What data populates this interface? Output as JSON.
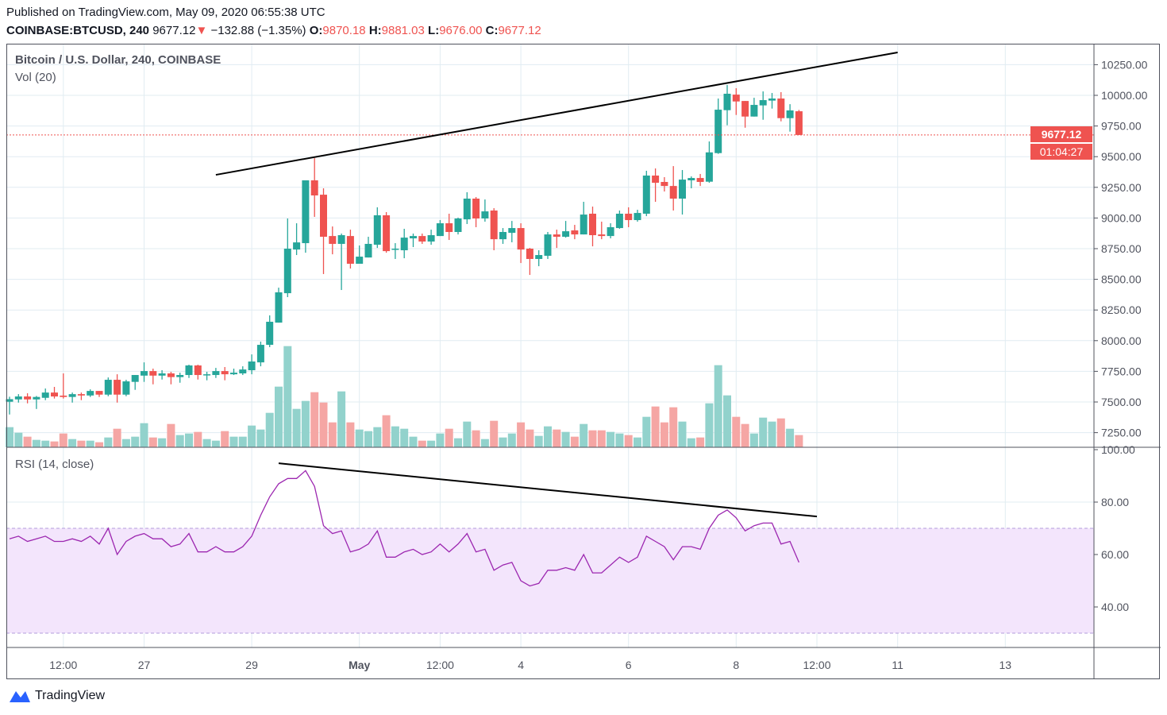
{
  "header": {
    "published": "Published on TradingView.com, May 09, 2020 06:55:38 UTC",
    "symbol": "COINBASE:BTCUSD, 240",
    "last": "9677.12",
    "change": "−132.88 (−1.35%)",
    "o_label": "O:",
    "o": "9870.18",
    "h_label": "H:",
    "h": "9881.03",
    "l_label": "L:",
    "l": "9676.00",
    "c_label": "C:",
    "c": "9677.12"
  },
  "legend": {
    "title": "Bitcoin / U.S. Dollar, 240, COINBASE",
    "volume": "Vol (20)",
    "rsi": "RSI (14, close)"
  },
  "price_tag": "9677.12",
  "countdown": "01:04:27",
  "brand": "TradingView",
  "colors": {
    "up": "#26a69a",
    "down": "#ef5350",
    "vol_up": "#92d2cc",
    "vol_down": "#f5a6a4",
    "rsi": "#9c27b0",
    "rsi_band": "#f3e5fc",
    "grid": "#e1ecf2"
  },
  "chart_data": [
    {
      "type": "candlestick",
      "title": "Bitcoin / U.S. Dollar, 240, COINBASE",
      "y_ticks": [
        "10250.00",
        "10000.00",
        "9750.00",
        "9500.00",
        "9250.00",
        "9000.00",
        "8750.00",
        "8500.00",
        "8250.00",
        "8000.00",
        "7750.00",
        "7500.00",
        "7250.00"
      ],
      "ylim": [
        7150,
        10350
      ],
      "x_ticks": [
        {
          "label": "12:00",
          "index": 6
        },
        {
          "label": "27",
          "index": 15
        },
        {
          "label": "29",
          "index": 27
        },
        {
          "label": "May",
          "index": 39
        },
        {
          "label": "12:00",
          "index": 48
        },
        {
          "label": "4",
          "index": 57
        },
        {
          "label": "6",
          "index": 69
        },
        {
          "label": "8",
          "index": 81
        },
        {
          "label": "12:00",
          "index": 90
        },
        {
          "label": "11",
          "index": 99
        },
        {
          "label": "13",
          "index": 111
        }
      ],
      "x_range": [
        -0.4,
        121
      ],
      "ohlc": [
        [
          7502,
          7543,
          7398,
          7523
        ],
        [
          7521,
          7564,
          7495,
          7545
        ],
        [
          7545,
          7571,
          7489,
          7521
        ],
        [
          7521,
          7549,
          7443,
          7541
        ],
        [
          7534,
          7610,
          7515,
          7577
        ],
        [
          7577,
          7623,
          7528,
          7545
        ],
        [
          7552,
          7733,
          7528,
          7541
        ],
        [
          7541,
          7577,
          7495,
          7564
        ],
        [
          7564,
          7577,
          7515,
          7553
        ],
        [
          7553,
          7603,
          7541,
          7590
        ],
        [
          7590,
          7590,
          7541,
          7560
        ],
        [
          7560,
          7700,
          7547,
          7681
        ],
        [
          7681,
          7726,
          7495,
          7560
        ],
        [
          7560,
          7681,
          7547,
          7668
        ],
        [
          7664,
          7720,
          7599,
          7720
        ],
        [
          7715,
          7823,
          7664,
          7752
        ],
        [
          7752,
          7772,
          7644,
          7715
        ],
        [
          7715,
          7759,
          7683,
          7733
        ],
        [
          7733,
          7746,
          7644,
          7703
        ],
        [
          7703,
          7739,
          7657,
          7720
        ],
        [
          7720,
          7804,
          7696,
          7798
        ],
        [
          7798,
          7804,
          7683,
          7720
        ],
        [
          7720,
          7746,
          7677,
          7726
        ],
        [
          7720,
          7778,
          7696,
          7752
        ],
        [
          7752,
          7785,
          7677,
          7726
        ],
        [
          7726,
          7772,
          7720,
          7739
        ],
        [
          7733,
          7791,
          7720,
          7765
        ],
        [
          7759,
          7888,
          7726,
          7830
        ],
        [
          7823,
          7992,
          7791,
          7966
        ],
        [
          7966,
          8206,
          7947,
          8154
        ],
        [
          8147,
          8432,
          8147,
          8394
        ],
        [
          8387,
          8996,
          8355,
          8750
        ],
        [
          8743,
          8957,
          8698,
          8801
        ],
        [
          8795,
          9307,
          8717,
          9307
        ],
        [
          9307,
          9488,
          9009,
          9184
        ],
        [
          9190,
          9242,
          8543,
          8847
        ],
        [
          8853,
          8931,
          8704,
          8789
        ],
        [
          8789,
          8873,
          8413,
          8860
        ],
        [
          8853,
          8905,
          8588,
          8627
        ],
        [
          8627,
          8776,
          8627,
          8685
        ],
        [
          8678,
          8847,
          8678,
          8789
        ],
        [
          8782,
          9087,
          8756,
          9022
        ],
        [
          9022,
          9048,
          8717,
          8730
        ],
        [
          8743,
          8795,
          8666,
          8750
        ],
        [
          8737,
          8912,
          8672,
          8840
        ],
        [
          8834,
          8873,
          8763,
          8853
        ],
        [
          8853,
          8873,
          8789,
          8808
        ],
        [
          8808,
          8905,
          8782,
          8860
        ],
        [
          8853,
          8983,
          8853,
          8957
        ],
        [
          8957,
          9035,
          8821,
          8886
        ],
        [
          8886,
          9003,
          8866,
          8996
        ],
        [
          8989,
          9210,
          8951,
          9158
        ],
        [
          9158,
          9171,
          8925,
          8996
        ],
        [
          8996,
          9151,
          8970,
          9054
        ],
        [
          9061,
          9080,
          8737,
          8827
        ],
        [
          8827,
          8918,
          8789,
          8886
        ],
        [
          8879,
          8976,
          8802,
          8918
        ],
        [
          8918,
          8957,
          8633,
          8743
        ],
        [
          8750,
          8756,
          8536,
          8666
        ],
        [
          8666,
          8737,
          8607,
          8698
        ],
        [
          8692,
          8886,
          8666,
          8866
        ],
        [
          8866,
          8905,
          8756,
          8847
        ],
        [
          8847,
          8976,
          8840,
          8892
        ],
        [
          8899,
          8944,
          8827,
          8866
        ],
        [
          8866,
          9132,
          8866,
          9028
        ],
        [
          9035,
          9093,
          8769,
          8860
        ],
        [
          8866,
          8970,
          8827,
          8853
        ],
        [
          8853,
          8957,
          8834,
          8925
        ],
        [
          8918,
          9061,
          8912,
          9035
        ],
        [
          9035,
          9087,
          8925,
          8983
        ],
        [
          8983,
          9067,
          8970,
          9041
        ],
        [
          9035,
          9385,
          9015,
          9346
        ],
        [
          9346,
          9404,
          9132,
          9287
        ],
        [
          9294,
          9333,
          9216,
          9261
        ],
        [
          9261,
          9423,
          9061,
          9158
        ],
        [
          9158,
          9391,
          9028,
          9313
        ],
        [
          9307,
          9339,
          9242,
          9326
        ],
        [
          9326,
          9359,
          9261,
          9294
        ],
        [
          9296,
          9624,
          9287,
          9535
        ],
        [
          9529,
          9974,
          9523,
          9883
        ],
        [
          9879,
          10084,
          9756,
          10013
        ],
        [
          10006,
          10058,
          9840,
          9950
        ],
        [
          9954,
          9954,
          9736,
          9827
        ],
        [
          9827,
          9980,
          9827,
          9922
        ],
        [
          9918,
          10032,
          9801,
          9961
        ],
        [
          9957,
          10019,
          9892,
          9974
        ],
        [
          9974,
          10026,
          9788,
          9814
        ],
        [
          9814,
          9928,
          9704,
          9877
        ],
        [
          9870.18,
          9881.03,
          9676.0,
          9677.12
        ]
      ],
      "volume_relative": [
        76,
        55,
        40,
        28,
        25,
        22,
        52,
        31,
        25,
        25,
        19,
        37,
        70,
        31,
        40,
        91,
        37,
        34,
        88,
        46,
        52,
        58,
        31,
        25,
        61,
        40,
        40,
        82,
        67,
        130,
        229,
        382,
        145,
        175,
        208,
        169,
        94,
        211,
        94,
        67,
        61,
        76,
        121,
        79,
        70,
        40,
        25,
        25,
        52,
        70,
        34,
        97,
        64,
        31,
        100,
        37,
        52,
        94,
        67,
        43,
        79,
        67,
        58,
        40,
        88,
        64,
        64,
        58,
        52,
        46,
        37,
        115,
        154,
        94,
        151,
        97,
        34,
        37,
        166,
        310,
        196,
        115,
        88,
        52,
        112,
        97,
        109,
        70,
        46
      ],
      "trendline": {
        "from": {
          "index": 23,
          "price": 9352
        },
        "to": {
          "index": 99,
          "price": 10350
        }
      },
      "last_price": 9677.12
    },
    {
      "type": "line",
      "title": "RSI (14, close)",
      "y_ticks": [
        "100.00",
        "80.00",
        "60.00",
        "40.00"
      ],
      "ylim": [
        20.5,
        100
      ],
      "band": [
        30,
        70
      ],
      "values": [
        66,
        67,
        65,
        66,
        67,
        65,
        65,
        66,
        65,
        67,
        64,
        70,
        60,
        65,
        67,
        68,
        66,
        66,
        63,
        64,
        68,
        61,
        61,
        63,
        61,
        61,
        63,
        67,
        75,
        82,
        87,
        89,
        89,
        92,
        86,
        71,
        68,
        69,
        61,
        62,
        64,
        69,
        59,
        59,
        61,
        62,
        60,
        61,
        64,
        61,
        64,
        68,
        61,
        62,
        54,
        56,
        57,
        50,
        48,
        49,
        54,
        54,
        55,
        54,
        60,
        53,
        53,
        56,
        59,
        57,
        59,
        67,
        65,
        63,
        58,
        63,
        63,
        62,
        70,
        75,
        77,
        74,
        69,
        71,
        72,
        72,
        64,
        65,
        57
      ],
      "trendline": {
        "from": {
          "index": 30,
          "value": 94.8
        },
        "to": {
          "index": 90,
          "value": 74.5
        }
      }
    }
  ]
}
